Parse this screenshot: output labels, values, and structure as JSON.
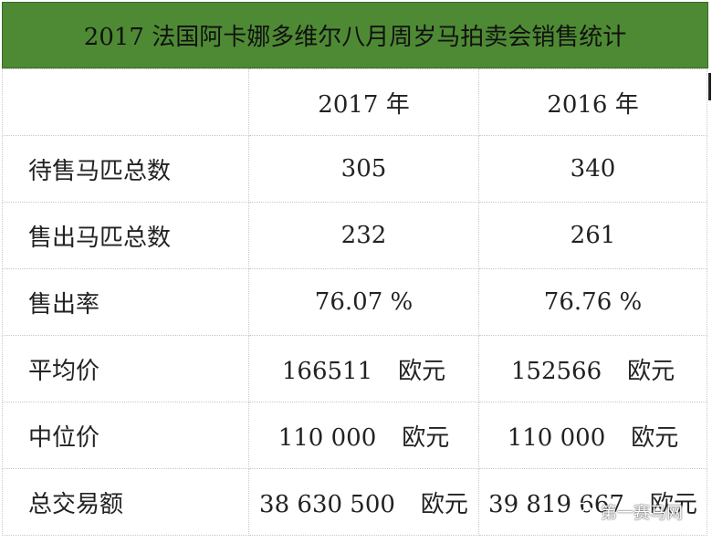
{
  "title": "2017 法国阿卡娜多维尔八月周岁马拍卖会销售统计",
  "headers": [
    "",
    "2017 年",
    "2016 年"
  ],
  "rows": [
    {
      "label": "待售马匹总数",
      "y2017": "305",
      "y2016": "340",
      "unit": ""
    },
    {
      "label": "售出马匹总数",
      "y2017": "232",
      "y2016": "261",
      "unit": ""
    },
    {
      "label": "售出率",
      "y2017": "76.07 %",
      "y2016": "76.76 %",
      "unit": ""
    },
    {
      "label": "平均价",
      "y2017": "166511",
      "y2016": "152566",
      "unit": "欧元"
    },
    {
      "label": "中位价",
      "y2017": "110 000",
      "y2016": "110 000",
      "unit": "欧元"
    },
    {
      "label": "总交易额",
      "y2017": "38 630 500",
      "y2016": "39 819 667",
      "unit": "欧元"
    }
  ],
  "watermark": "第一赛马网",
  "colors": {
    "title_bg": "#4e8a34",
    "header_text": "#a0184a"
  }
}
